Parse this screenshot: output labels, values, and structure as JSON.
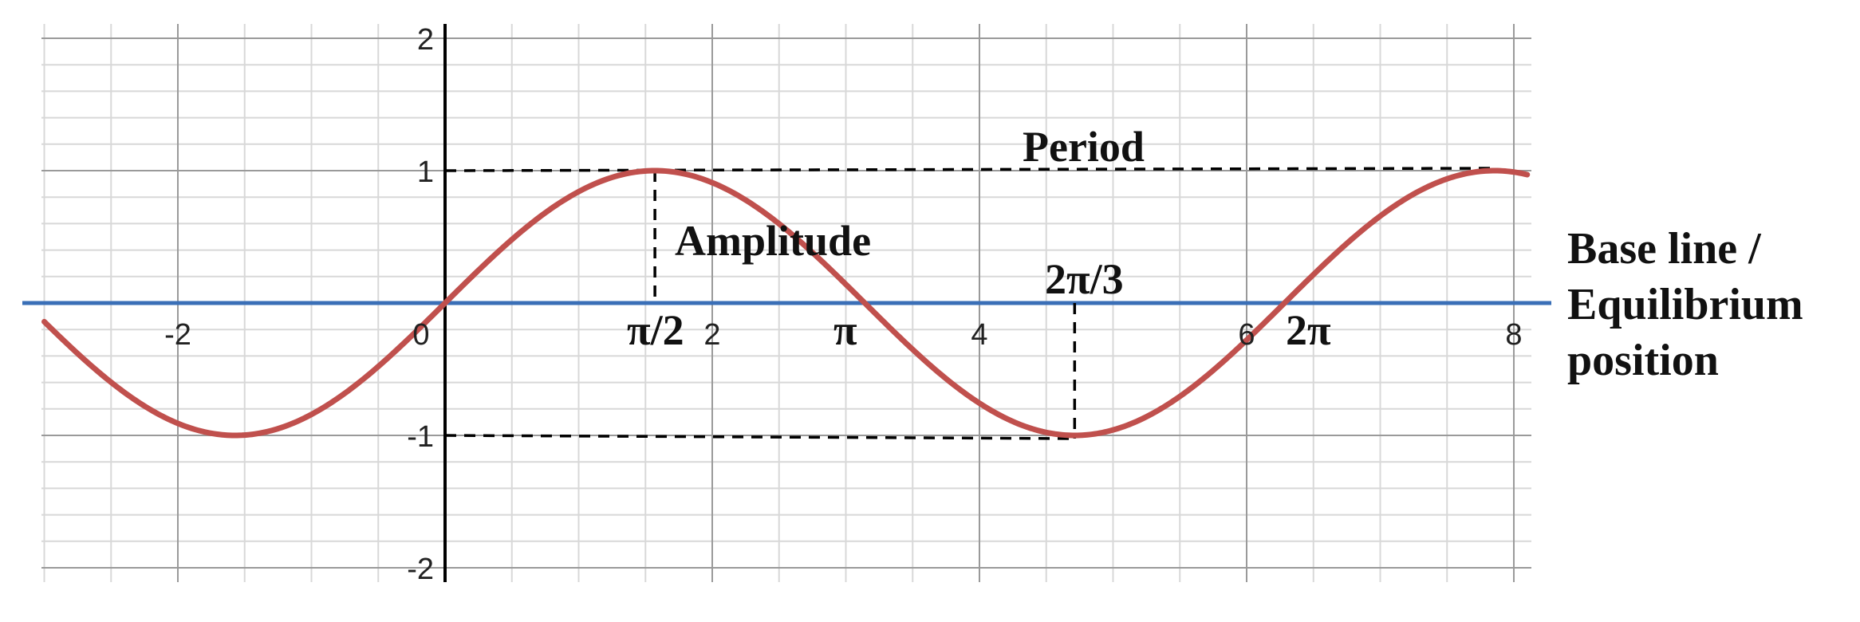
{
  "chart_data": {
    "type": "line",
    "title": "",
    "xlabel": "",
    "ylabel": "",
    "xlim": [
      -3,
      8.1
    ],
    "ylim": [
      -2,
      2
    ],
    "grid": true,
    "x_ticks": [
      -2,
      0,
      2,
      4,
      6,
      8
    ],
    "y_ticks": [
      -2,
      -1,
      1,
      2
    ],
    "x_tick_labels": [
      "-2",
      "0",
      "2",
      "4",
      "6",
      "8"
    ],
    "y_tick_labels": [
      "-2",
      "-1",
      "1",
      "2"
    ],
    "series": [
      {
        "function": "sin(x)",
        "color": "#c0504d",
        "x_range": [
          -3,
          8.1
        ]
      },
      {
        "function": "y = 0",
        "color": "#3a6fb7"
      }
    ],
    "guides": {
      "amplitude_x": 1.5708,
      "trough_x": 4.7124,
      "crest_end_x": 7.85,
      "top_y": 1,
      "bottom_y": -1
    },
    "annotations": {
      "period": "Period",
      "amplitude": "Amplitude",
      "two_pi_over_three": "2π/3",
      "pi_over_two": "π/2",
      "pi": "π",
      "two_pi": "2π",
      "baseline_line1": "Base line /",
      "baseline_line2": "Equilibrium",
      "baseline_line3": "position"
    },
    "colors": {
      "curve": "#c0504d",
      "baseline": "#3a6fb7",
      "axis": "#000000",
      "guides": "#000000"
    }
  }
}
